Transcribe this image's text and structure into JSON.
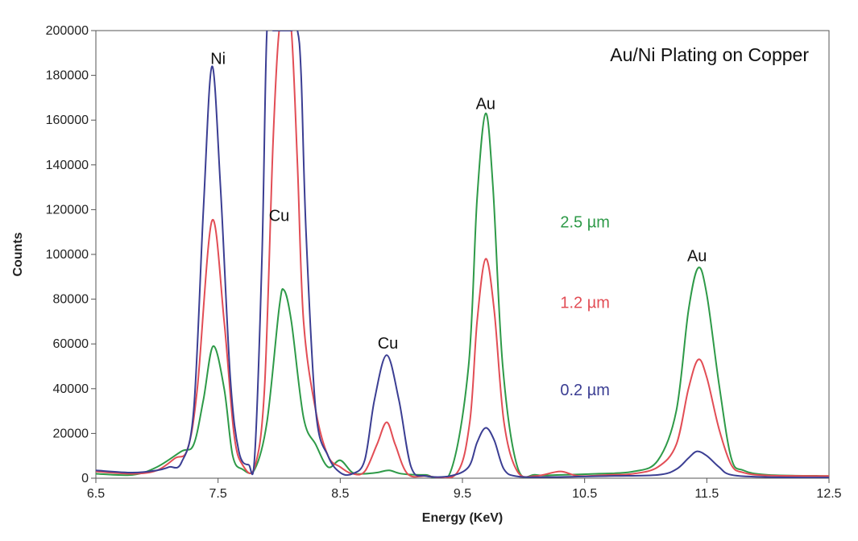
{
  "chart_data": {
    "type": "line",
    "title": "Au/Ni Plating on Copper",
    "xlabel": "Energy (KeV)",
    "ylabel": "Counts",
    "xlim": [
      6.5,
      12.5
    ],
    "ylim": [
      0,
      200000
    ],
    "x_ticks": [
      "6.5",
      "7.5",
      "8.5",
      "9.5",
      "10.5",
      "11.5",
      "12.5"
    ],
    "y_ticks": [
      "0",
      "20000",
      "40000",
      "60000",
      "80000",
      "100000",
      "120000",
      "140000",
      "160000",
      "180000",
      "200000"
    ],
    "grid": false,
    "peak_labels": [
      {
        "text": "Ni",
        "x": 7.5,
        "y": 185000
      },
      {
        "text": "Cu",
        "x": 8.0,
        "y": 115000
      },
      {
        "text": "Cu",
        "x": 8.89,
        "y": 58000
      },
      {
        "text": "Au",
        "x": 9.69,
        "y": 165000
      },
      {
        "text": "Au",
        "x": 11.42,
        "y": 97000
      }
    ],
    "series": [
      {
        "name": "2.5 µm",
        "color": "#2e9a48",
        "label_position": {
          "x": 10.3,
          "y": 112000
        },
        "points": [
          [
            6.5,
            2000
          ],
          [
            6.8,
            1500
          ],
          [
            7.0,
            5000
          ],
          [
            7.2,
            12000
          ],
          [
            7.3,
            15000
          ],
          [
            7.38,
            35000
          ],
          [
            7.46,
            59000
          ],
          [
            7.55,
            40000
          ],
          [
            7.62,
            10000
          ],
          [
            7.7,
            4000
          ],
          [
            7.8,
            4000
          ],
          [
            7.9,
            25000
          ],
          [
            8.0,
            76000
          ],
          [
            8.04,
            84000
          ],
          [
            8.1,
            70000
          ],
          [
            8.2,
            27000
          ],
          [
            8.3,
            15000
          ],
          [
            8.4,
            5000
          ],
          [
            8.5,
            8000
          ],
          [
            8.6,
            2500
          ],
          [
            8.7,
            2000
          ],
          [
            8.8,
            2500
          ],
          [
            8.9,
            3500
          ],
          [
            9.0,
            2000
          ],
          [
            9.2,
            1500
          ],
          [
            9.4,
            2500
          ],
          [
            9.55,
            50000
          ],
          [
            9.62,
            125000
          ],
          [
            9.69,
            163000
          ],
          [
            9.75,
            130000
          ],
          [
            9.83,
            50000
          ],
          [
            9.95,
            5000
          ],
          [
            10.1,
            1500
          ],
          [
            10.3,
            1500
          ],
          [
            10.6,
            2000
          ],
          [
            10.9,
            3000
          ],
          [
            11.1,
            8000
          ],
          [
            11.25,
            30000
          ],
          [
            11.35,
            75000
          ],
          [
            11.43,
            94000
          ],
          [
            11.5,
            82000
          ],
          [
            11.6,
            42000
          ],
          [
            11.7,
            9000
          ],
          [
            11.8,
            3500
          ],
          [
            12.0,
            1500
          ],
          [
            12.5,
            1000
          ]
        ]
      },
      {
        "name": "1.2 µm",
        "color": "#e24d55",
        "label_position": {
          "x": 10.3,
          "y": 76000
        },
        "points": [
          [
            6.5,
            3000
          ],
          [
            6.8,
            2000
          ],
          [
            7.0,
            3500
          ],
          [
            7.15,
            9000
          ],
          [
            7.25,
            13000
          ],
          [
            7.33,
            40000
          ],
          [
            7.45,
            115000
          ],
          [
            7.55,
            70000
          ],
          [
            7.63,
            20000
          ],
          [
            7.7,
            6000
          ],
          [
            7.8,
            5000
          ],
          [
            7.88,
            40000
          ],
          [
            7.95,
            150000
          ],
          [
            8.0,
            200000
          ],
          [
            8.05,
            200000
          ],
          [
            8.1,
            200000
          ],
          [
            8.15,
            140000
          ],
          [
            8.2,
            70000
          ],
          [
            8.3,
            30000
          ],
          [
            8.4,
            10000
          ],
          [
            8.5,
            5000
          ],
          [
            8.6,
            2000
          ],
          [
            8.7,
            3000
          ],
          [
            8.8,
            15000
          ],
          [
            8.88,
            25000
          ],
          [
            8.95,
            15000
          ],
          [
            9.05,
            2000
          ],
          [
            9.2,
            1000
          ],
          [
            9.45,
            2000
          ],
          [
            9.56,
            25000
          ],
          [
            9.62,
            70000
          ],
          [
            9.69,
            98000
          ],
          [
            9.76,
            75000
          ],
          [
            9.84,
            25000
          ],
          [
            9.95,
            3000
          ],
          [
            10.1,
            1000
          ],
          [
            10.3,
            3000
          ],
          [
            10.45,
            1000
          ],
          [
            10.7,
            1500
          ],
          [
            10.9,
            2000
          ],
          [
            11.1,
            5000
          ],
          [
            11.25,
            15000
          ],
          [
            11.35,
            40000
          ],
          [
            11.43,
            53000
          ],
          [
            11.5,
            45000
          ],
          [
            11.6,
            22000
          ],
          [
            11.7,
            6000
          ],
          [
            11.8,
            2500
          ],
          [
            12.0,
            1200
          ],
          [
            12.5,
            1000
          ]
        ]
      },
      {
        "name": "0.2 µm",
        "color": "#3b3e93",
        "label_position": {
          "x": 10.3,
          "y": 37000
        },
        "points": [
          [
            6.5,
            3500
          ],
          [
            6.8,
            2500
          ],
          [
            7.0,
            3500
          ],
          [
            7.1,
            5000
          ],
          [
            7.2,
            7000
          ],
          [
            7.3,
            30000
          ],
          [
            7.38,
            120000
          ],
          [
            7.45,
            184000
          ],
          [
            7.52,
            130000
          ],
          [
            7.6,
            45000
          ],
          [
            7.67,
            12000
          ],
          [
            7.75,
            6000
          ],
          [
            7.8,
            10000
          ],
          [
            7.86,
            100000
          ],
          [
            7.9,
            200000
          ],
          [
            7.95,
            200000
          ],
          [
            8.1,
            200000
          ],
          [
            8.15,
            200000
          ],
          [
            8.18,
            180000
          ],
          [
            8.22,
            110000
          ],
          [
            8.3,
            30000
          ],
          [
            8.4,
            10000
          ],
          [
            8.5,
            2500
          ],
          [
            8.6,
            2000
          ],
          [
            8.7,
            8000
          ],
          [
            8.78,
            35000
          ],
          [
            8.88,
            55000
          ],
          [
            8.98,
            35000
          ],
          [
            9.08,
            5000
          ],
          [
            9.2,
            1000
          ],
          [
            9.4,
            1000
          ],
          [
            9.55,
            5000
          ],
          [
            9.62,
            16000
          ],
          [
            9.69,
            22500
          ],
          [
            9.76,
            17000
          ],
          [
            9.84,
            4000
          ],
          [
            9.95,
            800
          ],
          [
            10.2,
            500
          ],
          [
            10.7,
            1000
          ],
          [
            11.1,
            1500
          ],
          [
            11.25,
            4000
          ],
          [
            11.35,
            9000
          ],
          [
            11.42,
            12000
          ],
          [
            11.5,
            10000
          ],
          [
            11.6,
            5000
          ],
          [
            11.7,
            1500
          ],
          [
            12.0,
            500
          ],
          [
            12.5,
            300
          ]
        ]
      }
    ]
  }
}
